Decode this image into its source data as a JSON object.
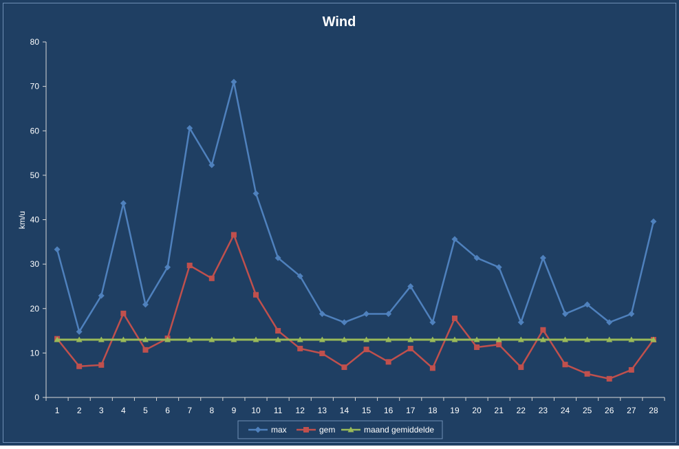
{
  "colors": {
    "background": "#1F3F63",
    "frame": "#6F8FB5",
    "axis": "#D9D9D9",
    "text": "#FFFFFF",
    "max": "#4F81BD",
    "gem": "#C0504D",
    "avg": "#9BBB59"
  },
  "chart_data": {
    "type": "line",
    "title": "Wind",
    "xlabel": "",
    "ylabel": "km/u",
    "ylim": [
      0,
      80
    ],
    "yticks": [
      0,
      10,
      20,
      30,
      40,
      50,
      60,
      70,
      80
    ],
    "categories": [
      "1",
      "2",
      "3",
      "4",
      "5",
      "6",
      "7",
      "8",
      "9",
      "10",
      "11",
      "12",
      "13",
      "14",
      "15",
      "16",
      "17",
      "18",
      "19",
      "20",
      "21",
      "22",
      "23",
      "24",
      "25",
      "26",
      "27",
      "28"
    ],
    "legend_position": "bottom",
    "grid": false,
    "series": [
      {
        "name": "max",
        "marker": "diamond",
        "values": [
          33.3,
          14.8,
          22.9,
          43.7,
          20.9,
          29.3,
          60.6,
          52.3,
          71.0,
          45.9,
          31.4,
          27.3,
          18.8,
          16.9,
          18.8,
          18.8,
          25.0,
          16.9,
          35.6,
          31.4,
          29.3,
          16.9,
          31.4,
          18.8,
          20.9,
          16.9,
          18.8,
          39.6
        ]
      },
      {
        "name": "gem",
        "marker": "square",
        "values": [
          13.2,
          7.0,
          7.3,
          18.9,
          10.7,
          13.3,
          29.7,
          26.8,
          36.6,
          23.1,
          15.0,
          11.0,
          9.9,
          6.8,
          10.8,
          8.0,
          11.0,
          6.6,
          17.8,
          11.3,
          11.9,
          6.8,
          15.2,
          7.4,
          5.3,
          4.2,
          6.2,
          13.0
        ]
      },
      {
        "name": "maand gemiddelde",
        "marker": "triangle",
        "values": [
          13.0,
          13.0,
          13.0,
          13.0,
          13.0,
          13.0,
          13.0,
          13.0,
          13.0,
          13.0,
          13.0,
          13.0,
          13.0,
          13.0,
          13.0,
          13.0,
          13.0,
          13.0,
          13.0,
          13.0,
          13.0,
          13.0,
          13.0,
          13.0,
          13.0,
          13.0,
          13.0,
          13.0
        ]
      }
    ]
  }
}
